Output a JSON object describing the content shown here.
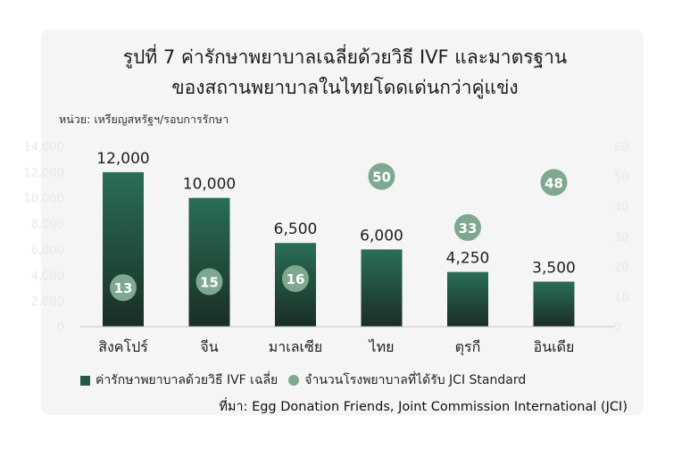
{
  "title_line1": "รูปที่ 7 ค่ารักษาพยาบาลเฉลี่ยด้วยวิธี IVF และมาตรฐาน",
  "title_line2": "ของสถานพยาบาลในไทยโดดเด่นกว่าคู่แข่ง",
  "unit_label": "หน่วย: เหรียญสหรัฐฯ/รอบการรักษา",
  "legend": {
    "bar_label": "ค่ารักษาพยาบาลด้วยวิธี IVF เฉลี่ย",
    "dot_label": "จำนวนโรงพยาบาลที่ได้รับ JCI Standard"
  },
  "source": "ที่มา: Egg Donation Friends, Joint Commission International (JCI)",
  "colors": {
    "bar_top": "#2a6e55",
    "bar_bottom": "#1a2e25",
    "dot": "#7ea890",
    "dot_text": "#ffffff",
    "faint_axis": "#e8e8e8"
  },
  "chart_data": {
    "type": "bar",
    "categories": [
      "สิงคโปร์",
      "จีน",
      "มาเลเซีย",
      "ไทย",
      "ตุรกี",
      "อินเดีย"
    ],
    "series": [
      {
        "values": [
          12000,
          10000,
          6500,
          6000,
          4250,
          3500
        ],
        "value_labels": [
          "12,000",
          "10,000",
          "6,500",
          "6,000",
          "4,250",
          "3,500"
        ]
      },
      {
        "values": [
          13,
          15,
          16,
          50,
          33,
          48
        ]
      }
    ],
    "ylim_left": [
      0,
      14000
    ],
    "ylim_right": [
      0,
      60
    ],
    "left_ticks": [
      0,
      2000,
      4000,
      6000,
      8000,
      10000,
      12000,
      14000
    ],
    "left_tick_labels": [
      "0",
      "2,000",
      "4,000",
      "6,000",
      "8,000",
      "10,000",
      "12,000",
      "14,000"
    ],
    "right_ticks": [
      0,
      10,
      20,
      30,
      40,
      50,
      60
    ],
    "right_tick_labels": [
      "0",
      "10",
      "20",
      "30",
      "40",
      "50",
      "60"
    ],
    "grid": false,
    "legend_position": "bottom"
  }
}
